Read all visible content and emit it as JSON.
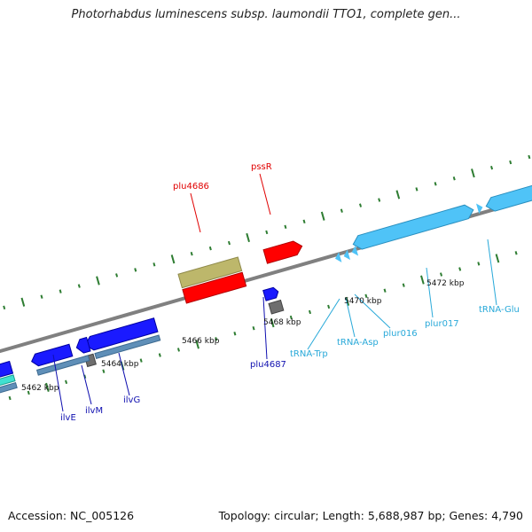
{
  "header": {
    "title": "Photorhabdus luminescens subsp. laumondii TTO1, complete gen..."
  },
  "footer": {
    "accession": "Accession: NC_005126",
    "summary": "Topology: circular; Length: 5,688,987 bp; Genes: 4,790"
  },
  "colors": {
    "backbone": "#808080",
    "ticks": "#2e7d32",
    "gene_red": "#ff0000",
    "gene_blue": "#1a1aff",
    "gene_khaki": "#bdb76b",
    "gene_lightblue": "#4fc3f7",
    "gene_cyan": "#40e0d0",
    "gene_steel": "#5f8fb8",
    "gene_gray": "#6e6e6e",
    "label_red": "#e00000",
    "label_blue": "#1010b0",
    "label_cyan": "#29a9d9"
  },
  "scale_labels": [
    "5462 kbp",
    "5464 kbp",
    "5466 kbp",
    "5468 kbp",
    "5470 kbp",
    "5472 kbp"
  ],
  "gene_labels": [
    {
      "id": "plu4686",
      "text": "plu4686",
      "color": "red"
    },
    {
      "id": "pssR",
      "text": "pssR",
      "color": "red"
    },
    {
      "id": "plu4687",
      "text": "plu4687",
      "color": "blue"
    },
    {
      "id": "ilvE",
      "text": "ilvE",
      "color": "blue"
    },
    {
      "id": "ilvM",
      "text": "ilvM",
      "color": "blue"
    },
    {
      "id": "ilvG",
      "text": "ilvG",
      "color": "blue"
    },
    {
      "id": "tRNA-Trp",
      "text": "tRNA-Trp",
      "color": "cyan"
    },
    {
      "id": "tRNA-Asp",
      "text": "tRNA-Asp",
      "color": "cyan"
    },
    {
      "id": "plur016",
      "text": "plur016",
      "color": "cyan"
    },
    {
      "id": "plur017",
      "text": "plur017",
      "color": "cyan"
    },
    {
      "id": "tRNA-Glu",
      "text": "tRNA-Glu",
      "color": "cyan"
    }
  ]
}
